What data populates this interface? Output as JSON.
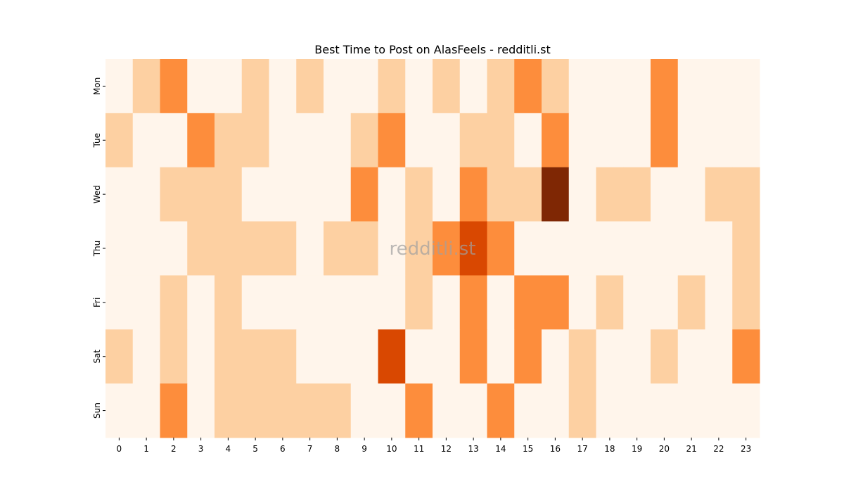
{
  "chart_data": {
    "type": "heatmap",
    "title": "Best Time to Post on AlasFeels - redditli.st",
    "watermark": "redditli.st",
    "xlabel": "",
    "ylabel": "",
    "x": [
      "0",
      "1",
      "2",
      "3",
      "4",
      "5",
      "6",
      "7",
      "8",
      "9",
      "10",
      "11",
      "12",
      "13",
      "14",
      "15",
      "16",
      "17",
      "18",
      "19",
      "20",
      "21",
      "22",
      "23"
    ],
    "y": [
      "Mon",
      "Tue",
      "Wed",
      "Thu",
      "Fri",
      "Sat",
      "Sun"
    ],
    "values": [
      [
        0,
        1,
        2,
        0,
        0,
        1,
        0,
        1,
        0,
        0,
        1,
        0,
        1,
        0,
        1,
        2,
        1,
        0,
        0,
        0,
        2,
        0,
        0,
        0
      ],
      [
        1,
        0,
        0,
        2,
        1,
        1,
        0,
        0,
        0,
        1,
        2,
        0,
        0,
        1,
        1,
        0,
        2,
        0,
        0,
        0,
        2,
        0,
        0,
        0
      ],
      [
        0,
        0,
        1,
        1,
        1,
        0,
        0,
        0,
        0,
        2,
        0,
        1,
        0,
        2,
        1,
        1,
        4,
        0,
        1,
        1,
        0,
        0,
        1,
        1
      ],
      [
        0,
        0,
        0,
        1,
        1,
        1,
        1,
        0,
        1,
        1,
        0,
        1,
        2,
        3,
        2,
        0,
        0,
        0,
        0,
        0,
        0,
        0,
        0,
        1
      ],
      [
        0,
        0,
        1,
        0,
        1,
        0,
        0,
        0,
        0,
        0,
        0,
        1,
        0,
        2,
        0,
        2,
        2,
        0,
        1,
        0,
        0,
        1,
        0,
        1
      ],
      [
        1,
        0,
        1,
        0,
        1,
        1,
        1,
        0,
        0,
        0,
        3,
        0,
        0,
        2,
        0,
        2,
        0,
        1,
        0,
        0,
        1,
        0,
        0,
        2
      ],
      [
        0,
        0,
        2,
        0,
        1,
        1,
        1,
        1,
        1,
        0,
        0,
        2,
        0,
        0,
        2,
        0,
        0,
        1,
        0,
        0,
        0,
        0,
        0,
        0
      ]
    ],
    "colors": [
      "#fff5eb",
      "#fdd0a2",
      "#fd8d3c",
      "#d94801",
      "#7f2704"
    ],
    "grid": false,
    "legend": "none"
  }
}
